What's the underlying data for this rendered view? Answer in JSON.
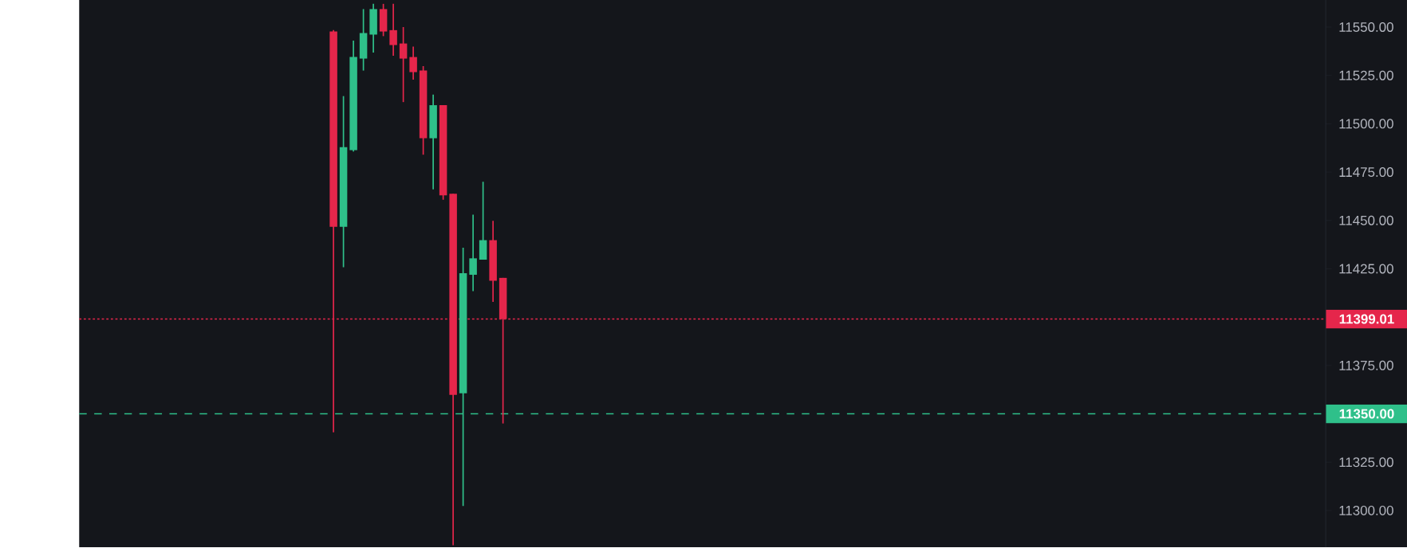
{
  "chart_data": {
    "type": "candlestick",
    "categories": [
      null,
      null,
      null,
      null,
      null,
      null,
      null,
      null,
      null,
      null,
      null,
      null,
      null,
      null,
      null,
      null,
      null,
      null,
      null,
      null,
      null,
      null,
      null,
      null,
      null,
      null,
      null,
      null,
      null,
      null,
      null,
      null,
      null,
      null,
      null,
      null,
      null,
      null,
      null,
      null,
      null,
      null,
      null,
      null,
      null,
      null,
      null,
      null,
      null,
      null,
      null,
      null,
      null,
      null,
      null,
      null,
      null,
      null,
      null,
      null,
      null,
      null,
      null,
      null,
      null,
      null,
      null,
      null,
      null,
      null,
      null,
      null,
      null,
      null,
      null,
      null,
      null,
      null,
      null,
      null,
      null,
      null,
      null,
      null,
      null,
      null,
      null,
      null,
      null,
      null,
      null,
      null,
      null,
      null,
      null,
      null,
      null,
      null,
      null,
      null,
      null,
      null,
      null,
      null,
      null,
      null,
      null,
      null,
      null,
      null,
      null,
      null,
      null,
      null,
      null,
      null,
      null,
      null,
      null,
      null,
      null,
      null,
      null,
      null,
      null
    ],
    "ohlc": [
      null,
      null,
      null,
      null,
      null,
      null,
      null,
      null,
      null,
      null,
      null,
      null,
      null,
      null,
      null,
      null,
      null,
      null,
      null,
      null,
      null,
      null,
      null,
      null,
      null,
      [
        11547.7,
        11548.4,
        11340.4,
        11446.7
      ],
      [
        11446.7,
        11514.3,
        11425.8,
        11487.9
      ],
      [
        11486.3,
        11543.0,
        11485.6,
        11534.5
      ],
      [
        11533.7,
        11559.3,
        11527.5,
        11546.9
      ],
      [
        11546.1,
        11562.0,
        11536.8,
        11559.3
      ],
      [
        11559.3,
        11562.0,
        11545.3,
        11547.7
      ],
      [
        11548.4,
        11562.0,
        11535.2,
        11540.7
      ],
      [
        11541.5,
        11550.0,
        11511.2,
        11533.7
      ],
      [
        11534.5,
        11539.9,
        11522.8,
        11526.7
      ],
      [
        11527.5,
        11529.8,
        11484.0,
        11492.5
      ],
      [
        11492.5,
        11515.1,
        11466.1,
        11509.6
      ],
      [
        11509.6,
        11509.6,
        11460.7,
        11463.0
      ],
      [
        11463.8,
        11463.8,
        11282.0,
        11359.8
      ],
      [
        11360.6,
        11435.9,
        11302.3,
        11422.7
      ],
      [
        11421.9,
        11453.0,
        11413.4,
        11430.4
      ],
      [
        11429.7,
        11470.0,
        11429.7,
        11439.8
      ],
      [
        11439.8,
        11449.8,
        11407.9,
        11418.8
      ],
      [
        11420.3,
        11420.3,
        11345.0,
        11399.01
      ],
      null,
      null,
      null,
      null,
      null,
      null,
      null,
      null,
      null,
      null,
      null,
      null,
      null,
      null,
      null,
      null,
      null,
      null,
      null,
      null,
      null,
      null,
      null,
      null,
      null,
      null,
      null,
      null,
      null,
      null,
      null,
      null,
      null,
      null,
      null,
      null,
      null,
      null,
      null,
      null,
      null,
      null,
      null,
      null,
      null,
      null,
      null,
      null,
      null,
      null,
      null,
      null,
      null,
      null,
      null,
      null,
      null,
      null,
      null,
      null,
      null,
      null,
      null,
      null,
      null,
      null,
      null,
      null,
      null,
      null,
      null,
      null,
      null,
      null,
      null,
      null,
      null,
      null,
      null,
      null,
      null,
      null
    ],
    "colors": [
      null,
      null,
      null,
      null,
      null,
      null,
      null,
      null,
      null,
      null,
      null,
      null,
      null,
      null,
      null,
      null,
      null,
      null,
      null,
      null,
      null,
      null,
      null,
      null,
      null,
      "#e5264b",
      "#2fc08a",
      "#2fc08a",
      "#2fc08a",
      "#2fc08a",
      "#e5264b",
      "#e5264b",
      "#e5264b",
      "#e5264b",
      "#e5264b",
      "#2fc08a",
      "#e5264b",
      "#e5264b",
      "#2fc08a",
      "#2fc08a",
      "#2fc08a",
      "#e5264b",
      "#e5264b",
      null,
      null,
      null,
      null,
      null,
      null,
      null,
      null,
      null,
      null,
      null,
      null,
      null,
      null,
      null,
      null,
      null,
      null,
      null,
      null,
      null,
      null,
      null,
      null,
      null,
      null,
      null,
      null,
      null,
      null,
      null,
      null,
      null,
      null,
      null,
      null,
      null,
      null,
      null,
      null,
      null,
      null,
      null,
      null,
      null,
      null,
      null,
      null,
      null,
      null,
      null,
      null,
      null,
      null,
      null,
      null,
      null,
      null,
      null,
      null,
      null,
      null,
      null,
      null,
      null,
      null,
      null,
      null,
      null,
      null,
      null,
      null,
      null,
      null,
      null,
      null,
      null,
      null,
      null,
      null,
      null,
      null
    ],
    "ylim": [
      11281,
      11564
    ],
    "yticks": [
      {
        "value": 11300,
        "label": "11300.00"
      },
      {
        "value": 11325,
        "label": "11325.00"
      },
      {
        "value": 11375,
        "label": "11375.00"
      },
      {
        "value": 11425,
        "label": "11425.00"
      },
      {
        "value": 11450,
        "label": "11450.00"
      },
      {
        "value": 11475,
        "label": "11475.00"
      },
      {
        "value": 11500,
        "label": "11500.00"
      },
      {
        "value": 11525,
        "label": "11525.00"
      },
      {
        "value": 11550,
        "label": "11550.00"
      }
    ],
    "tick_labels": "y",
    "grid": false,
    "ref_lines": [
      {
        "axis": "y",
        "value": 11399.01,
        "label": "11399.01",
        "color": "#e5264b",
        "line_style": "dotted"
      },
      {
        "axis": "y",
        "value": 11350,
        "label": "11350.00",
        "color": "#2fc08a",
        "line_style": "dashed"
      }
    ]
  }
}
